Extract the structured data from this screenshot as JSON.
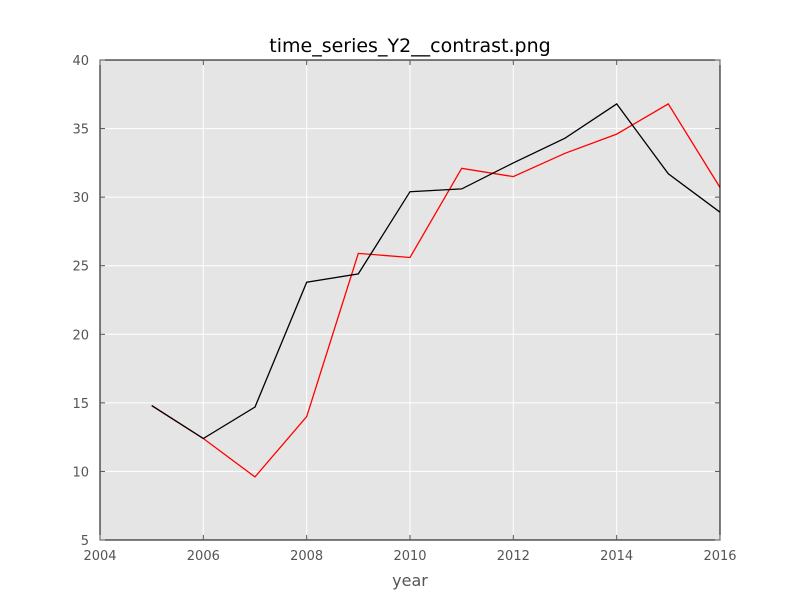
{
  "chart_data": {
    "type": "line",
    "title": "time_series_Y2__contrast.png",
    "xlabel": "year",
    "ylabel": "",
    "xlim": [
      2004,
      2016
    ],
    "ylim": [
      5,
      40
    ],
    "xticks": [
      "2004",
      "2006",
      "2008",
      "2010",
      "2012",
      "2014",
      "2016"
    ],
    "yticks": [
      "5",
      "10",
      "15",
      "20",
      "25",
      "30",
      "35",
      "40"
    ],
    "grid": true,
    "background": "#e5e5e5",
    "x": [
      2005,
      2006,
      2007,
      2008,
      2009,
      2010,
      2011,
      2012,
      2013,
      2014,
      2015,
      2016
    ],
    "series": [
      {
        "color": "#ff0000",
        "values": [
          14.8,
          12.4,
          9.6,
          14.0,
          25.9,
          25.6,
          32.1,
          31.5,
          33.2,
          34.6,
          36.8,
          30.7
        ]
      },
      {
        "color": "#000000",
        "values": [
          14.8,
          12.4,
          14.7,
          23.8,
          24.4,
          30.4,
          30.6,
          32.5,
          34.3,
          36.8,
          31.7,
          28.9
        ]
      }
    ]
  }
}
